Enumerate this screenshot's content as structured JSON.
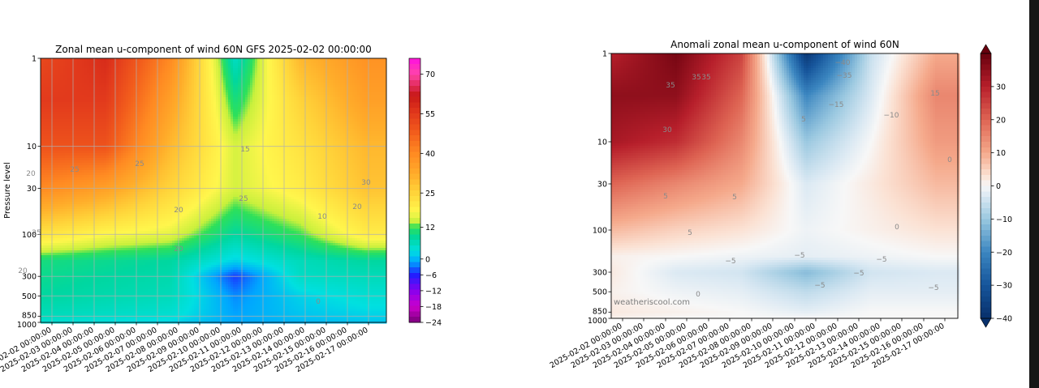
{
  "chart_data": [
    {
      "type": "heatmap",
      "title": "Zonal mean u-component of wind 60N GFS 2025-02-02 00:00:00",
      "ylabel": "Pressure level",
      "xlabel": "",
      "x_ticks": [
        "2025-02-02 00:00:00",
        "2025-02-03 00:00:00",
        "2025-02-04 00:00:00",
        "2025-02-05 00:00:00",
        "2025-02-06 00:00:00",
        "2025-02-07 00:00:00",
        "2025-02-08 00:00:00",
        "2025-02-09 00:00:00",
        "2025-02-10 00:00:00",
        "2025-02-11 00:00:00",
        "2025-02-12 00:00:00",
        "2025-02-13 00:00:00",
        "2025-02-14 00:00:00",
        "2025-02-15 00:00:00",
        "2025-02-16 00:00:00",
        "2025-02-17 00:00:00"
      ],
      "y_ticks": [
        "1",
        "10",
        "30",
        "100",
        "300",
        "500",
        "850",
        "1000"
      ],
      "y_scale": "log",
      "ylim": [
        1000,
        1
      ],
      "grid": true,
      "colorbar": {
        "range": [
          -24,
          76
        ],
        "ticks": [
          "70",
          "55",
          "40",
          "25",
          "12",
          "0",
          "−6",
          "−12",
          "−18",
          "−24"
        ]
      },
      "contour_labels": [
        "20",
        "25",
        "25",
        "20",
        "20",
        "25",
        "15",
        "25",
        "30",
        "20",
        "20",
        "10",
        "0"
      ],
      "x_days": [
        2,
        5,
        8,
        11,
        14,
        17
      ],
      "levels_hpa": [
        1,
        3,
        10,
        30,
        100,
        200,
        300,
        500,
        850,
        1000
      ],
      "values": [
        [
          52,
          58,
          40,
          5,
          30,
          38
        ],
        [
          55,
          55,
          35,
          10,
          25,
          35
        ],
        [
          50,
          50,
          30,
          15,
          22,
          30
        ],
        [
          40,
          35,
          25,
          15,
          20,
          28
        ],
        [
          22,
          18,
          16,
          8,
          12,
          20
        ],
        [
          10,
          9,
          8,
          2,
          6,
          8
        ],
        [
          9,
          8,
          7,
          -5,
          5,
          6
        ],
        [
          8,
          7,
          6,
          -2,
          2,
          4
        ],
        [
          6,
          5,
          4,
          -1,
          1,
          2
        ],
        [
          4,
          3,
          2,
          -1,
          0,
          1
        ]
      ]
    },
    {
      "type": "heatmap",
      "title": "Anomali zonal mean u-component of wind 60N",
      "xlabel": "",
      "ylabel": "",
      "x_ticks": [
        "2025-02-02 00:00:00",
        "2025-02-03 00:00:00",
        "2025-02-04 00:00:00",
        "2025-02-05 00:00:00",
        "2025-02-06 00:00:00",
        "2025-02-07 00:00:00",
        "2025-02-08 00:00:00",
        "2025-02-09 00:00:00",
        "2025-02-10 00:00:00",
        "2025-02-11 00:00:00",
        "2025-02-12 00:00:00",
        "2025-02-13 00:00:00",
        "2025-02-14 00:00:00",
        "2025-02-15 00:00:00",
        "2025-02-16 00:00:00",
        "2025-02-17 00:00:00"
      ],
      "y_ticks": [
        "1",
        "10",
        "30",
        "100",
        "300",
        "500",
        "850",
        "1000"
      ],
      "y_scale": "log",
      "ylim": [
        1000,
        1
      ],
      "grid": false,
      "colorbar": {
        "range": [
          -40,
          40
        ],
        "ticks": [
          "30",
          "20",
          "10",
          "0",
          "−10",
          "−20",
          "−30",
          "−40"
        ]
      },
      "contour_labels": [
        "35",
        "35",
        "35",
        "30",
        "5",
        "5",
        "5",
        "0",
        "−5",
        "−5",
        "−5",
        "−5",
        "−5",
        "0",
        "−40",
        "−35",
        "−15",
        "−10",
        "15",
        "5",
        "0",
        "−5"
      ],
      "watermark": "weatheriscool.com",
      "x_days": [
        2,
        5,
        8,
        11,
        14,
        17
      ],
      "levels_hpa": [
        1,
        3,
        10,
        30,
        100,
        200,
        300,
        500,
        850,
        1000
      ],
      "values": [
        [
          30,
          38,
          25,
          -38,
          -5,
          10
        ],
        [
          35,
          35,
          20,
          -20,
          -3,
          15
        ],
        [
          32,
          28,
          15,
          -10,
          0,
          12
        ],
        [
          20,
          15,
          10,
          -3,
          2,
          8
        ],
        [
          8,
          5,
          3,
          -1,
          1,
          3
        ],
        [
          1,
          0,
          -1,
          -2,
          -1,
          0
        ],
        [
          2,
          -3,
          -4,
          -12,
          -4,
          -3
        ],
        [
          1,
          -1,
          -2,
          -6,
          -2,
          -2
        ],
        [
          2,
          1,
          0,
          -2,
          0,
          0
        ],
        [
          1,
          0,
          0,
          0,
          0,
          0
        ]
      ]
    }
  ]
}
